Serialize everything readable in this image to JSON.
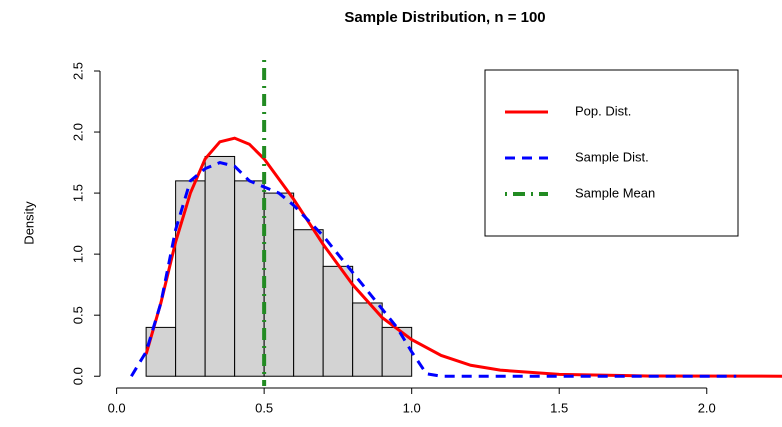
{
  "chart_data": {
    "type": "histogram",
    "title": "Sample Distribution, n = 100",
    "y_label": "Density",
    "bins": [
      0.1,
      0.2,
      0.3,
      0.4,
      0.5,
      0.6,
      0.7,
      0.8,
      0.9,
      1.0
    ],
    "counts": [
      0.4,
      1.6,
      1.8,
      1.6,
      1.5,
      1.2,
      0.9,
      0.6,
      0.4
    ],
    "bar_color": "#d3d3d3",
    "series": [
      {
        "name": "Pop. Dist.",
        "color": "#ff0000",
        "line_style": "solid",
        "x": [
          0.1,
          0.15,
          0.2,
          0.25,
          0.3,
          0.35,
          0.4,
          0.45,
          0.5,
          0.6,
          0.7,
          0.8,
          0.9,
          1.0,
          1.1,
          1.2,
          1.3,
          1.5,
          1.8,
          2.3
        ],
        "values": [
          0.18,
          0.6,
          1.1,
          1.5,
          1.78,
          1.92,
          1.95,
          1.9,
          1.78,
          1.45,
          1.08,
          0.75,
          0.48,
          0.3,
          0.17,
          0.09,
          0.05,
          0.015,
          0.002,
          0
        ]
      },
      {
        "name": "Sample Dist.",
        "color": "#0000ff",
        "line_style": "dashed",
        "x": [
          0.05,
          0.1,
          0.15,
          0.2,
          0.25,
          0.3,
          0.35,
          0.4,
          0.45,
          0.5,
          0.55,
          0.6,
          0.7,
          0.8,
          0.9,
          0.95,
          1.0,
          1.05,
          1.1,
          2.1
        ],
        "values": [
          0,
          0.2,
          0.6,
          1.2,
          1.6,
          1.7,
          1.75,
          1.72,
          1.6,
          1.55,
          1.5,
          1.4,
          1.15,
          0.85,
          0.55,
          0.4,
          0.2,
          0.02,
          0,
          0
        ]
      }
    ],
    "mean_line": {
      "name": "Sample Mean",
      "value": 0.5,
      "color": "#228b22",
      "line_style": "dotdash"
    },
    "xlim": [
      -0.08,
      2.255
    ],
    "ylim": [
      -0.08,
      2.59
    ],
    "xticks": [
      {
        "value": 0,
        "label": "0.0"
      },
      0.5,
      {
        "value": 1,
        "label": "1.0"
      },
      1.5,
      {
        "value": 2,
        "label": "2.0"
      }
    ],
    "yticks": [
      {
        "value": 0,
        "label": "0.0"
      },
      0.5,
      {
        "value": 1,
        "label": "1.0"
      },
      1.5,
      {
        "value": 2,
        "label": "2.0"
      },
      2.5
    ],
    "legend": "top-right"
  }
}
